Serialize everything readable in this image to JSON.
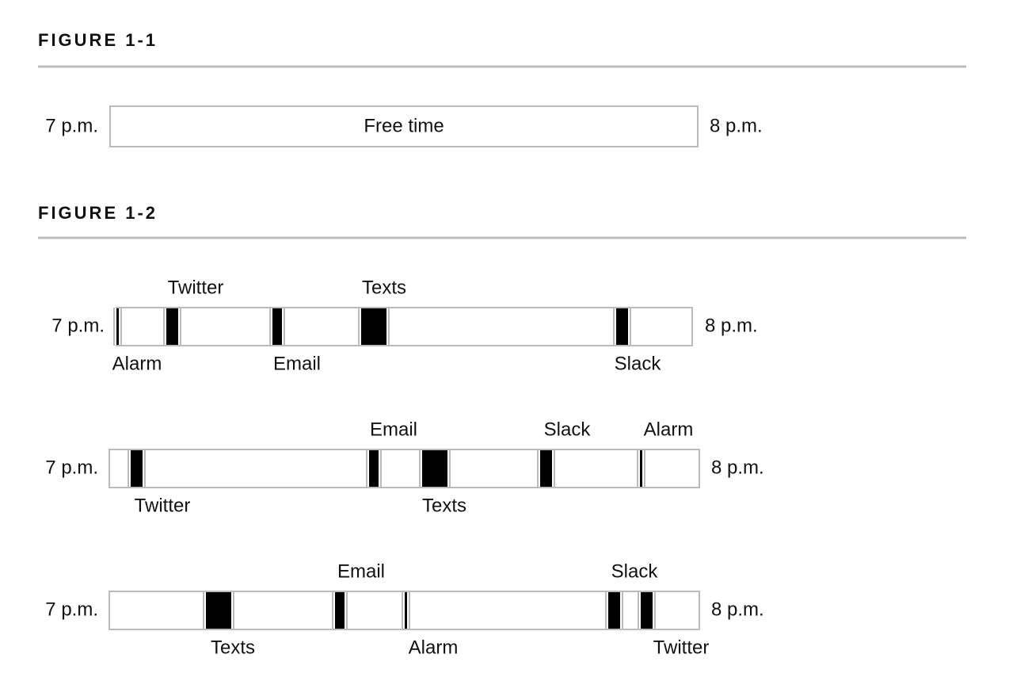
{
  "figure1": {
    "title": "FIGURE 1-1",
    "start": "7 p.m.",
    "end": "8 p.m.",
    "block": "Free time"
  },
  "figure2": {
    "title": "FIGURE 1-2",
    "rows": [
      {
        "start": "7 p.m.",
        "end": "8 p.m.",
        "events": [
          "Alarm",
          "Twitter",
          "Email",
          "Texts",
          "Slack"
        ]
      },
      {
        "start": "7 p.m.",
        "end": "8 p.m.",
        "events": [
          "Twitter",
          "Email",
          "Texts",
          "Slack",
          "Alarm"
        ]
      },
      {
        "start": "7 p.m.",
        "end": "8 p.m.",
        "events": [
          "Texts",
          "Email",
          "Alarm",
          "Slack",
          "Twitter"
        ]
      }
    ]
  }
}
